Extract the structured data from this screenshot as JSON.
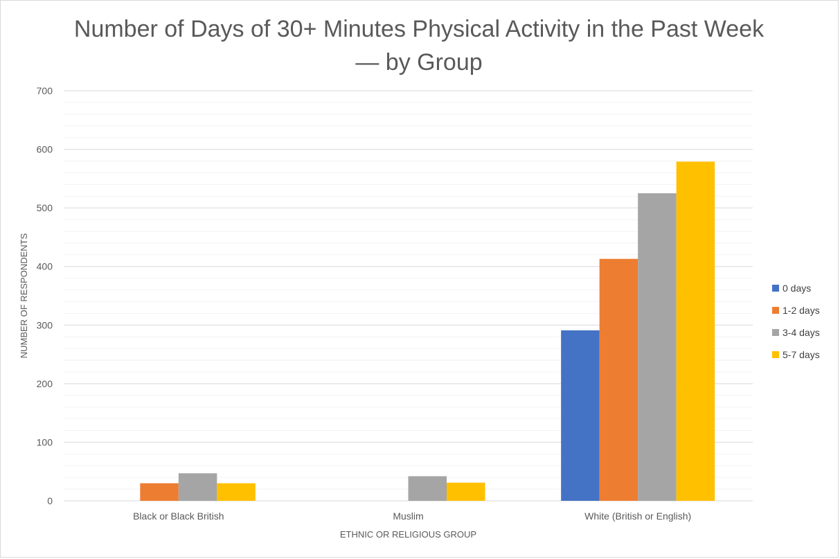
{
  "chart_data": {
    "type": "bar",
    "title": "Number of Days of 30+ Minutes Physical Activity in the Past Week — by Group",
    "xlabel": "ETHNIC OR RELIGIOUS GROUP",
    "ylabel": "NUMBER OF RESPONDENTS",
    "categories": [
      "Black or Black British",
      "Muslim",
      "White (British or English)"
    ],
    "series": [
      {
        "name": "0 days",
        "color": "#4472c4",
        "values": [
          0,
          0,
          291
        ]
      },
      {
        "name": "1-2 days",
        "color": "#ed7d31",
        "values": [
          30,
          0,
          413
        ]
      },
      {
        "name": "3-4 days",
        "color": "#a5a5a5",
        "values": [
          47,
          42,
          525
        ]
      },
      {
        "name": "5-7 days",
        "color": "#ffc000",
        "values": [
          30,
          31,
          579
        ]
      }
    ],
    "ylim": [
      0,
      700
    ],
    "yticks": [
      0,
      100,
      200,
      300,
      400,
      500,
      600,
      700
    ],
    "grid": true,
    "legend_position": "right"
  }
}
